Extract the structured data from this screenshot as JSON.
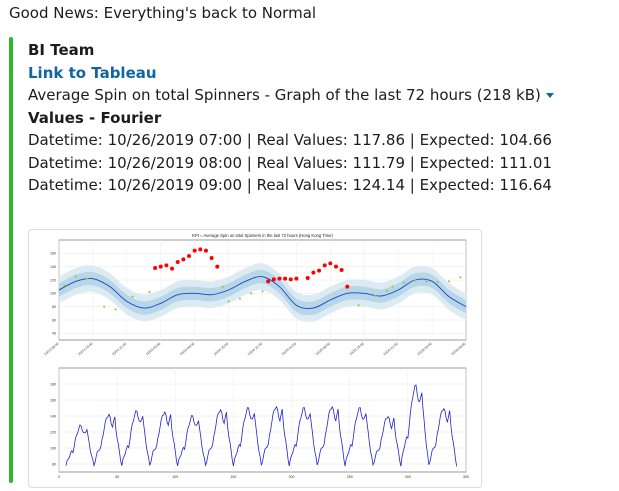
{
  "message": {
    "text": "Good News: Everything's back to Normal"
  },
  "attachment": {
    "accent_color": "#2eb82e",
    "title": "BI Team",
    "link_label": "Link to Tableau",
    "file_description": "Average Spin on total Spinners - Graph of the last 72 hours (218 kB)",
    "dropdown_icon": "caret-down-icon",
    "values_heading": "Values - Fourier",
    "rows": [
      "Datetime: 10/26/2019 07:00 | Real Values: 117.86 | Expected: 104.66",
      "Datetime: 10/26/2019 08:00 | Real Values: 111.79 | Expected: 111.01",
      "Datetime: 10/26/2019 09:00 | Real Values: 124.14 | Expected: 116.64"
    ]
  },
  "chart_data": [
    {
      "type": "line",
      "title": "KPI = Average Spin on total Spinners in the last 72 hours (Hong Kong Time)",
      "xlabel": "",
      "ylabel": "",
      "ylim": [
        30,
        180
      ],
      "yticks": [
        40,
        60,
        80,
        100,
        120,
        140,
        160
      ],
      "x_tick_labels": [
        "10/23 09:00",
        "10/23 15:00",
        "10/23 21:00",
        "10/24 03:00",
        "10/24 09:00",
        "10/24 15:00",
        "10/24 21:00",
        "10/25 03:00",
        "10/25 09:00",
        "10/25 15:00",
        "10/25 21:00",
        "10/26 03:00",
        "10/26 09:00"
      ],
      "grid": true,
      "colors": {
        "expected_line": "#1f3fd6",
        "band_inner": "#b7d6e6",
        "band_outer": "#dcebf3",
        "normal_points": "#9acd32",
        "anomaly_points": "#ff0000"
      },
      "x": [
        0,
        3,
        6,
        9,
        12,
        15,
        18,
        21,
        24,
        27,
        30,
        33,
        36,
        39,
        42,
        45,
        48,
        51,
        54,
        57,
        60,
        63,
        66,
        69,
        72
      ],
      "series": [
        {
          "values": [
            105,
            118,
            122,
            110,
            88,
            78,
            85,
            98,
            100,
            98,
            105,
            118,
            125,
            110,
            82,
            78,
            90,
            100,
            100,
            96,
            105,
            120,
            118,
            95,
            80
          ]
        }
      ],
      "band_inner_halfwidth": 10,
      "band_outer_halfwidth": 20,
      "real_values": [
        {
          "x": 1,
          "y": 112
        },
        {
          "x": 3,
          "y": 125
        },
        {
          "x": 5,
          "y": 122
        },
        {
          "x": 8,
          "y": 80
        },
        {
          "x": 10,
          "y": 76
        },
        {
          "x": 13,
          "y": 95
        },
        {
          "x": 16,
          "y": 102
        },
        {
          "x": 17,
          "y": 138
        },
        {
          "x": 18,
          "y": 140
        },
        {
          "x": 19,
          "y": 142
        },
        {
          "x": 20,
          "y": 137
        },
        {
          "x": 21,
          "y": 147
        },
        {
          "x": 22,
          "y": 151
        },
        {
          "x": 23,
          "y": 156
        },
        {
          "x": 24,
          "y": 164
        },
        {
          "x": 25,
          "y": 166
        },
        {
          "x": 26,
          "y": 164
        },
        {
          "x": 27,
          "y": 153
        },
        {
          "x": 28,
          "y": 140
        },
        {
          "x": 29,
          "y": 110
        },
        {
          "x": 30,
          "y": 88
        },
        {
          "x": 32,
          "y": 92
        },
        {
          "x": 34,
          "y": 100
        },
        {
          "x": 36,
          "y": 103
        },
        {
          "x": 37,
          "y": 118
        },
        {
          "x": 38,
          "y": 121
        },
        {
          "x": 39,
          "y": 122
        },
        {
          "x": 40,
          "y": 122
        },
        {
          "x": 41,
          "y": 121
        },
        {
          "x": 42,
          "y": 122
        },
        {
          "x": 44,
          "y": 123
        },
        {
          "x": 45,
          "y": 131
        },
        {
          "x": 46,
          "y": 134
        },
        {
          "x": 47,
          "y": 142
        },
        {
          "x": 48,
          "y": 145
        },
        {
          "x": 49,
          "y": 140
        },
        {
          "x": 50,
          "y": 135
        },
        {
          "x": 51,
          "y": 110
        },
        {
          "x": 53,
          "y": 82
        },
        {
          "x": 56,
          "y": 96
        },
        {
          "x": 58,
          "y": 104
        },
        {
          "x": 59,
          "y": 110
        },
        {
          "x": 61,
          "y": 116
        },
        {
          "x": 63,
          "y": 119
        },
        {
          "x": 65,
          "y": 118
        },
        {
          "x": 67,
          "y": 117
        },
        {
          "x": 69,
          "y": 118
        },
        {
          "x": 71,
          "y": 124
        }
      ],
      "anomaly_x_ranges": [
        [
          17,
          28
        ],
        [
          37,
          51
        ]
      ]
    },
    {
      "type": "line",
      "title": "",
      "xlabel": "",
      "ylabel": "",
      "xlim": [
        0,
        350
      ],
      "ylim": [
        70,
        200
      ],
      "xticks": [
        0,
        50,
        100,
        150,
        200,
        250,
        300,
        350
      ],
      "yticks": [
        80,
        100,
        120,
        140,
        160,
        180
      ],
      "grid": true,
      "colors": {
        "line": "#2222cc"
      },
      "cycle_length": 24,
      "cycle_peaks": [
        128,
        142,
        146,
        145,
        140,
        148,
        150,
        152,
        150,
        152,
        150,
        140,
        178,
        150
      ]
    }
  ]
}
